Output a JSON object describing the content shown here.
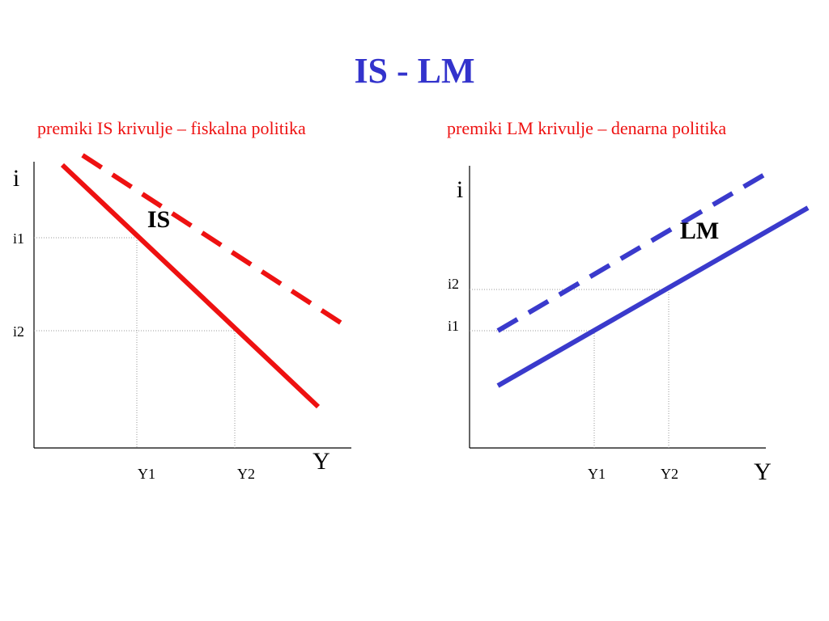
{
  "title": "IS - LM",
  "colors": {
    "title": "#3333cc",
    "is": "#ee1111",
    "lm": "#3a3acc",
    "axis": "#000000",
    "guide": "#999999"
  },
  "panels": [
    {
      "id": "is",
      "subtitle": "premiki IS krivulje – fiskalna politika",
      "y_axis_label": "i",
      "x_axis_label": "Y",
      "curve_label": "IS",
      "y_ticks": [
        "i1",
        "i2"
      ],
      "x_ticks": [
        "Y1",
        "Y2"
      ],
      "shift": "right",
      "policy": "fiskalna politika"
    },
    {
      "id": "lm",
      "subtitle": "premiki LM krivulje – denarna politika",
      "y_axis_label": "i",
      "x_axis_label": "Y",
      "curve_label": "LM",
      "y_ticks": [
        "i2",
        "i1"
      ],
      "x_ticks": [
        "Y1",
        "Y2"
      ],
      "shift": "left",
      "policy": "denarna politika"
    }
  ]
}
